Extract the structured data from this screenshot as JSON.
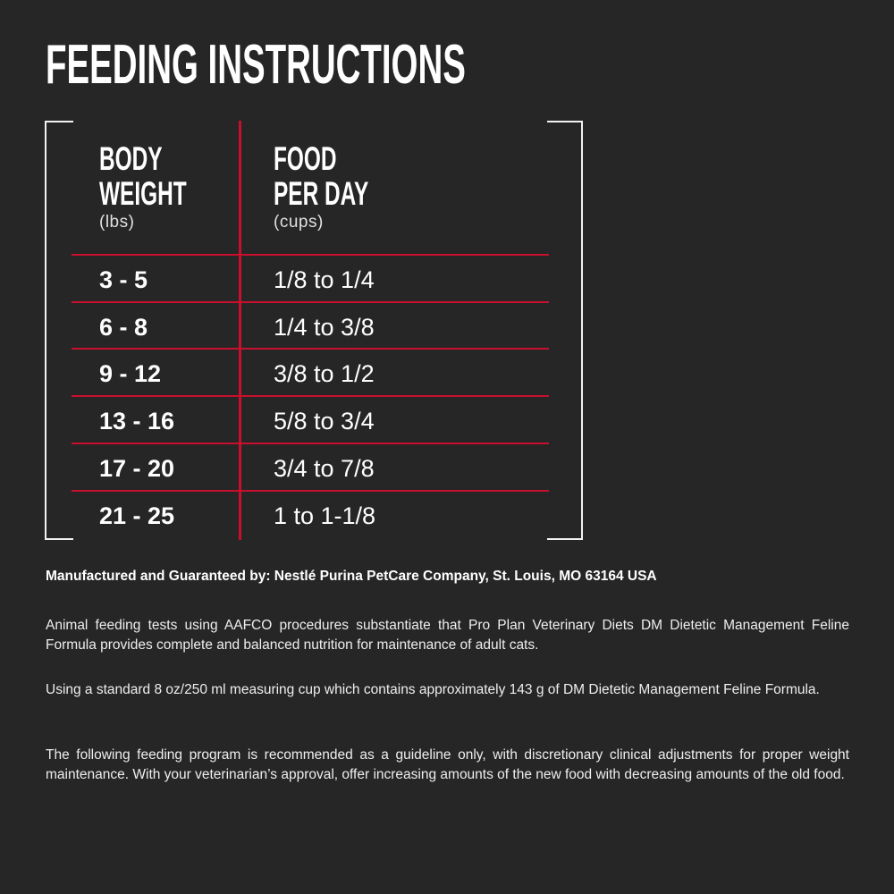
{
  "title": "FEEDING INSTRUCTIONS",
  "table": {
    "col1": {
      "line1": "BODY",
      "line2": "WEIGHT",
      "unit": "(lbs)"
    },
    "col2": {
      "line1": "FOOD",
      "line2": "PER DAY",
      "unit": "(cups)"
    },
    "rows": [
      {
        "weight": "3 - 5",
        "food": "1/8 to 1/4"
      },
      {
        "weight": "6 - 8",
        "food": "1/4 to 3/8"
      },
      {
        "weight": "9 - 12",
        "food": "3/8 to 1/2"
      },
      {
        "weight": "13 - 16",
        "food": "5/8 to 3/4"
      },
      {
        "weight": "17 - 20",
        "food": "3/4 to 7/8"
      },
      {
        "weight": "21 - 25",
        "food": "1 to 1-1/8"
      }
    ]
  },
  "manufacturer": "Manufactured and Guaranteed by: Nestlé Purina PetCare Company, St. Louis, MO 63164 USA",
  "paragraphs": [
    "Animal feeding tests using AAFCO procedures substantiate that Pro Plan Veterinary Diets DM Dietetic Management Feline Formula provides complete and balanced nutrition for maintenance of adult cats.",
    "Using a standard 8 oz/250 ml measuring cup which contains approximately 143 g of DM Dietetic Management Feline Formula.",
    "The following feeding program is recommended as a guideline only, with discretionary clinical adjustments for proper weight maintenance. With your veterinarian’s approval, offer increasing amounts of the new food with decreasing amounts of the old food."
  ],
  "colors": {
    "background": "#262626",
    "accent": "#c8102e",
    "text": "#ffffff"
  }
}
